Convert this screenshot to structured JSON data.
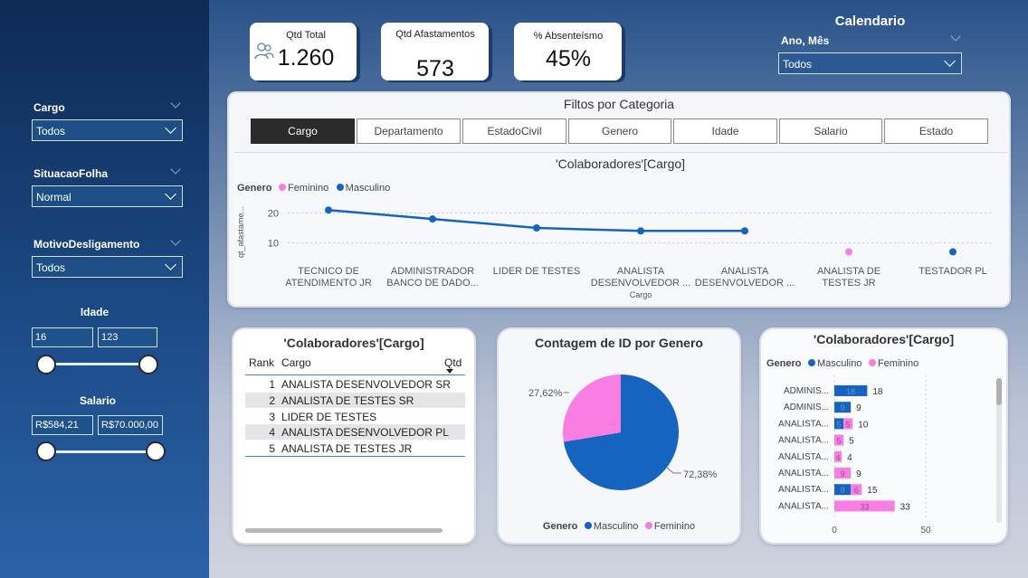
{
  "colors": {
    "masculino": "#1565c0",
    "feminino": "#f97ee3",
    "sidebar": "#1c4a86"
  },
  "sidebar": {
    "slicers": [
      {
        "label": "Cargo",
        "value": "Todos"
      },
      {
        "label": "SituacaoFolha",
        "value": "Normal"
      },
      {
        "label": "MotivoDesligamento",
        "value": "Todos"
      }
    ],
    "idade": {
      "title": "Idade",
      "min": "16",
      "max": "123"
    },
    "salario": {
      "title": "Salario",
      "min": "R$584,21",
      "max": "R$70.000,00"
    }
  },
  "kpis": [
    {
      "label": "Qtd Total",
      "value": "1.260",
      "icon": "people-icon"
    },
    {
      "label": "Qtd Afastamentos",
      "value": "573"
    },
    {
      "label": "% Absenteísmo",
      "value": "45%"
    }
  ],
  "calendario": {
    "title": "Calendario",
    "field": "Ano, Mês",
    "value": "Todos"
  },
  "filters": {
    "title": "Filtos por Categoria",
    "buttons": [
      "Cargo",
      "Departamento",
      "EstadoCivil",
      "Genero",
      "Idade",
      "Salario",
      "Estado"
    ],
    "active": "Cargo"
  },
  "line_chart": {
    "title": "'Colaboradores'[Cargo]",
    "legend_title": "Genero",
    "legend": [
      "Feminino",
      "Masculino"
    ],
    "ylabel": "qt_afastame...",
    "xlabel": "Cargo",
    "yticks": [
      "20",
      "10"
    ]
  },
  "table": {
    "title": "'Colaboradores'[Cargo]",
    "headers": [
      "Rank",
      "Cargo",
      "Qtd"
    ],
    "rows": [
      {
        "rank": "1",
        "cargo": "ANALISTA DESENVOLVEDOR SR"
      },
      {
        "rank": "2",
        "cargo": "ANALISTA DE TESTES SR"
      },
      {
        "rank": "3",
        "cargo": "LIDER DE TESTES"
      },
      {
        "rank": "4",
        "cargo": "ANALISTA DESENVOLVEDOR PL"
      },
      {
        "rank": "5",
        "cargo": "ANALISTA DE TESTES JR"
      }
    ]
  },
  "pie": {
    "title": "Contagem de ID por Genero",
    "legend_title": "Genero",
    "legend": [
      "Masculino",
      "Feminino"
    ],
    "labels": [
      "72,38%",
      "27,62%"
    ]
  },
  "bar": {
    "title": "'Colaboradores'[Cargo]",
    "legend_title": "Genero",
    "legend": [
      "Masculino",
      "Feminino"
    ],
    "xticks": [
      "0",
      "50"
    ]
  },
  "chart_data": [
    {
      "type": "line",
      "title": "'Colaboradores'[Cargo]",
      "xlabel": "Cargo",
      "ylabel": "qt_afastame...",
      "categories": [
        "TECNICO DE ATENDIMENTO JR",
        "ADMINISTRADOR BANCO DE DADO...",
        "LIDER DE TESTES",
        "ANALISTA DESENVOLVEDOR ...",
        "ANALISTA DESENVOLVEDOR ...",
        "ANALISTA DE TESTES JR",
        "TESTADOR PL"
      ],
      "series": [
        {
          "name": "Masculino",
          "values": [
            21,
            18,
            15,
            14,
            14,
            null,
            7
          ]
        },
        {
          "name": "Feminino",
          "values": [
            null,
            null,
            null,
            null,
            null,
            7,
            null
          ]
        }
      ],
      "ylim": [
        5,
        25
      ]
    },
    {
      "type": "pie",
      "title": "Contagem de ID por Genero",
      "slices": [
        {
          "name": "Masculino",
          "value": 72.38
        },
        {
          "name": "Feminino",
          "value": 27.62
        }
      ]
    },
    {
      "type": "bar",
      "orientation": "horizontal",
      "stacked": true,
      "title": "'Colaboradores'[Cargo]",
      "categories": [
        "ADMINIS...",
        "ADMINIS...",
        "ANALISTA...",
        "ANALISTA...",
        "ANALISTA...",
        "ANALISTA...",
        "ANALISTA...",
        "ANALISTA..."
      ],
      "series": [
        {
          "name": "Masculino",
          "values": [
            18,
            9,
            5,
            0,
            0,
            0,
            9,
            0
          ]
        },
        {
          "name": "Feminino",
          "values": [
            0,
            0,
            5,
            5,
            4,
            9,
            6,
            33
          ]
        }
      ],
      "totals": [
        18,
        9,
        10,
        5,
        4,
        9,
        15,
        33
      ],
      "xlim": [
        0,
        50
      ]
    }
  ]
}
